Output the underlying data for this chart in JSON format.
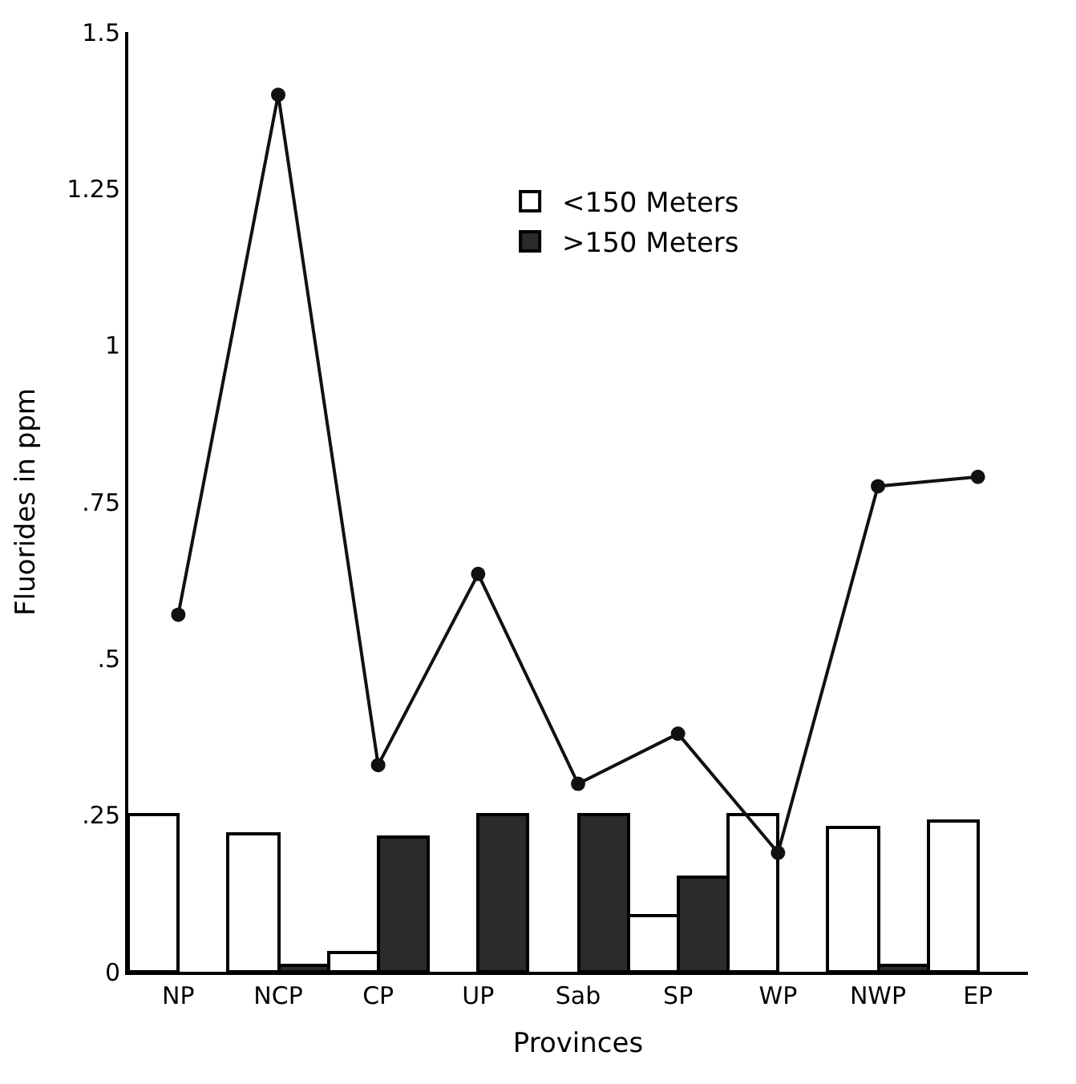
{
  "chart_data": {
    "type": "bar",
    "xlabel": "Provinces",
    "ylabel": "Fluorides in ppm",
    "categories": [
      "NP",
      "NCP",
      "CP",
      "UP",
      "Sab",
      "SP",
      "WP",
      "NWP",
      "EP"
    ],
    "series": [
      {
        "name": "<150 Meters",
        "color": "#ffffff",
        "values": [
          0.25,
          0.22,
          0.03,
          null,
          null,
          0.09,
          0.25,
          0.23,
          0.24
        ]
      },
      {
        "name": ">150 Meters",
        "color": "#2b2b2b",
        "values": [
          null,
          0.01,
          0.215,
          0.25,
          0.25,
          0.15,
          null,
          0.01,
          null
        ]
      },
      {
        "type": "line",
        "color": "#111111",
        "marker": "circle",
        "values": [
          0.57,
          1.4,
          0.33,
          0.635,
          0.3,
          0.38,
          0.19,
          0.775,
          0.79
        ]
      }
    ],
    "ylim": [
      0,
      1.5
    ],
    "yticks": [
      0,
      {
        "value": 0.25,
        "label": ".25"
      },
      {
        "value": 0.5,
        "label": ".5"
      },
      {
        "value": 0.75,
        "label": ".75"
      },
      1,
      1.25,
      1.5
    ],
    "grid": false,
    "legend": "top"
  }
}
